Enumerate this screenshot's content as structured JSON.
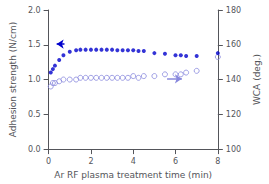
{
  "chart_data": {
    "type": "scatter",
    "xlabel": "Ar RF plasma treatment time (min)",
    "ylabel": "Adhesion strength (N/cm)",
    "y2label": "WCA (deg.)",
    "x": [
      0.1,
      0.2,
      0.3,
      0.5,
      0.7,
      1.0,
      1.3,
      1.5,
      1.75,
      2.0,
      2.25,
      2.5,
      2.75,
      3.0,
      3.25,
      3.5,
      3.75,
      4.0,
      4.25,
      4.5,
      5.0,
      5.5,
      6.0,
      6.25,
      6.5,
      7.0,
      8.0
    ],
    "series": [
      {
        "color": "#0000cc",
        "marker": "circle",
        "values": [
          1.1,
          1.15,
          1.2,
          1.28,
          1.35,
          1.4,
          1.42,
          1.43,
          1.43,
          1.43,
          1.43,
          1.43,
          1.43,
          1.43,
          1.42,
          1.42,
          1.42,
          1.42,
          1.41,
          1.41,
          1.38,
          1.37,
          1.35,
          1.35,
          1.34,
          1.34,
          1.38
        ]
      },
      {
        "color": "#8888dd",
        "marker": "open circle",
        "axis": "y2",
        "values": [
          136,
          138,
          138,
          139,
          140,
          140,
          140,
          141,
          141,
          141,
          141,
          141,
          141,
          141,
          141,
          141,
          141,
          142,
          141,
          142,
          142,
          143,
          143,
          143,
          144,
          145,
          153
        ]
      }
    ],
    "xlim": [
      0,
      8
    ],
    "xticks": [
      0,
      2,
      4,
      6,
      8
    ],
    "ylim": [
      0.0,
      2.0
    ],
    "yticks": [
      {
        "value": 0,
        "label": "0.0"
      },
      0.5,
      {
        "value": 1,
        "label": "1.0"
      },
      1.5,
      {
        "value": 2,
        "label": "2.0"
      }
    ],
    "y2lim": [
      100,
      180
    ],
    "y2ticks": [
      100,
      120,
      140,
      160,
      180
    ],
    "annotations": [
      {
        "type": "arrow",
        "xytext": [
          0.75,
          1.51
        ],
        "xy": [
          0.38,
          1.51
        ],
        "color": "#0000cc"
      },
      {
        "type": "arrow",
        "xytext": [
          5.6,
          1.01
        ],
        "xy": [
          6.3,
          1.01
        ],
        "color": "#8888dd"
      }
    ],
    "grid": false
  }
}
